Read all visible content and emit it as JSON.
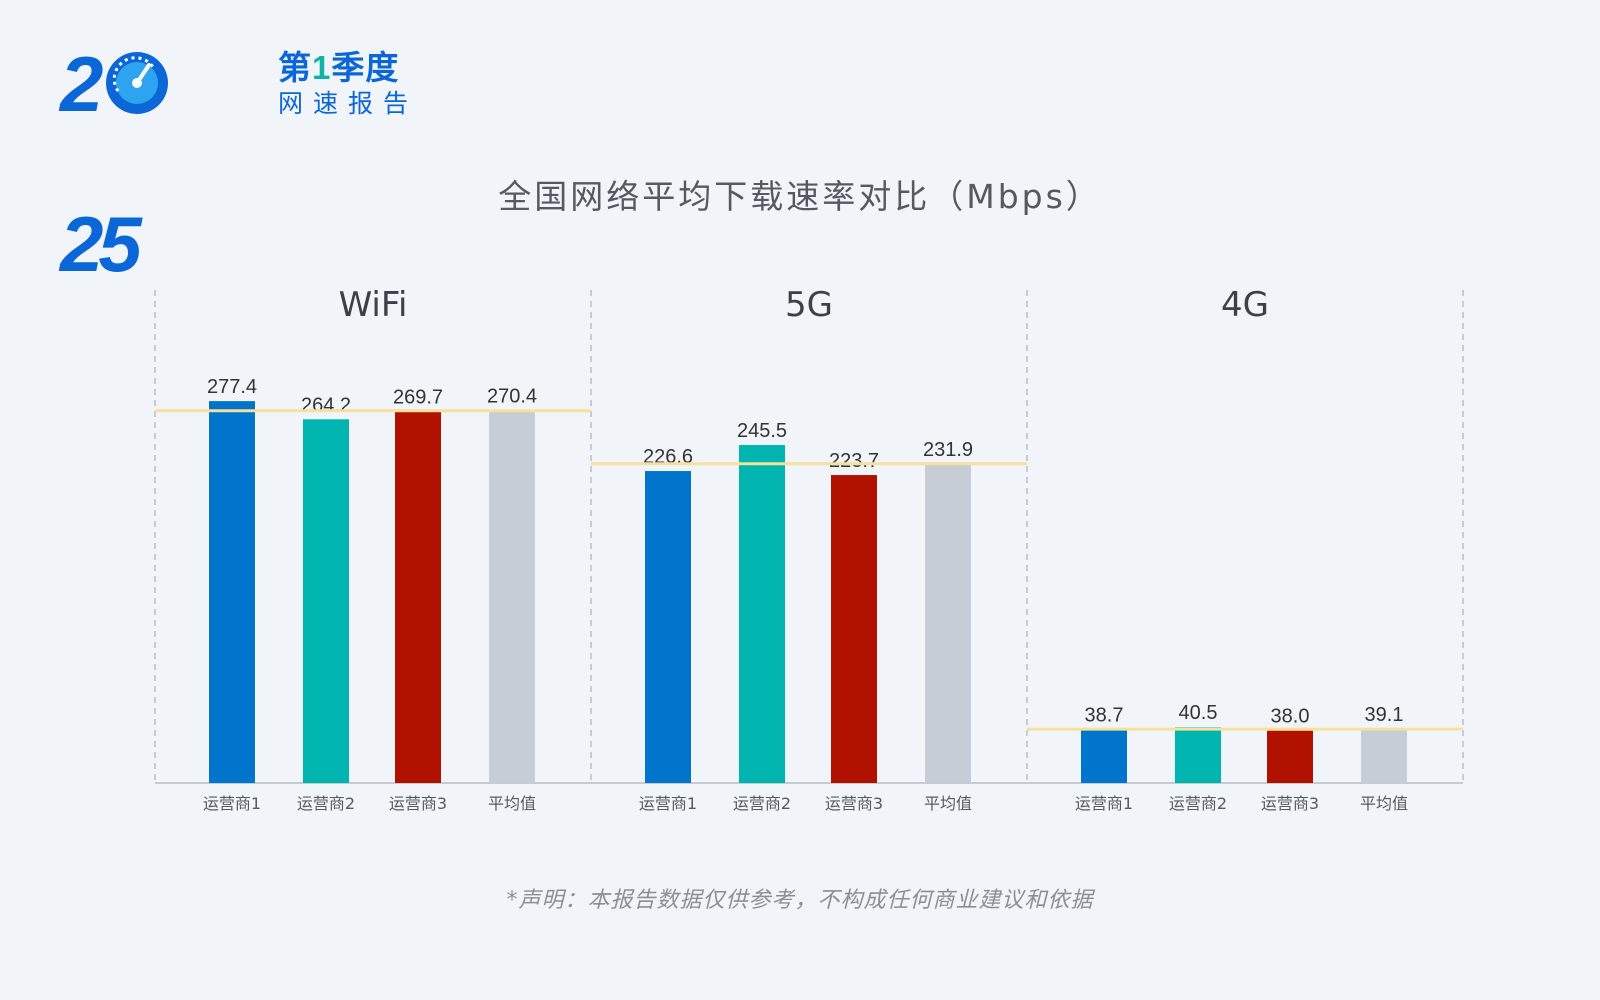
{
  "logo": {
    "year": "2025",
    "quarter_prefix": "第",
    "quarter_num": "1",
    "quarter_suffix": "季度",
    "report": "网速报告"
  },
  "colors": {
    "brand": "#0b67d8",
    "accent": "#12b3a6",
    "avg_line": "#f7e09a"
  },
  "chart_data": {
    "type": "bar",
    "title": "全国网络平均下载速率对比（Mbps）",
    "ylim": [
      0,
      300
    ],
    "grid": false,
    "groups": [
      {
        "name": "WiFi",
        "categories": [
          "运营商1",
          "运营商2",
          "运营商3",
          "平均值"
        ],
        "values": [
          277.4,
          264.2,
          269.7,
          270.4
        ],
        "average": 270.4
      },
      {
        "name": "5G",
        "categories": [
          "运营商1",
          "运营商2",
          "运营商3",
          "平均值"
        ],
        "values": [
          226.6,
          245.5,
          223.7,
          231.9
        ],
        "average": 231.9
      },
      {
        "name": "4G",
        "categories": [
          "运营商1",
          "运营商2",
          "运营商3",
          "平均值"
        ],
        "values": [
          38.7,
          40.5,
          38.0,
          39.1
        ],
        "average": 39.1
      }
    ],
    "bar_colors": [
      "#0174cc",
      "#00b4b0",
      "#b11200",
      "#c6cdd7"
    ]
  },
  "footer": {
    "disclaimer": "*声明：本报告数据仅供参考，不构成任何商业建议和依据"
  }
}
